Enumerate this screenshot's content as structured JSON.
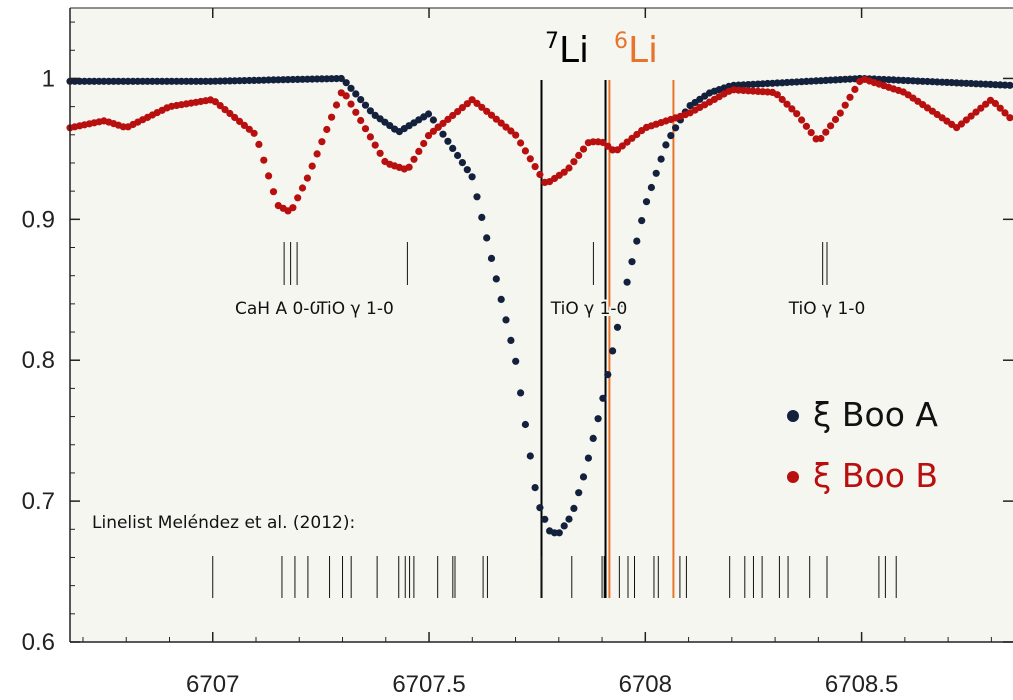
{
  "chart_data": {
    "type": "scatter",
    "xlim": [
      6706.67,
      6708.85
    ],
    "ylim": [
      0.6,
      1.05
    ],
    "x_ticks": [
      {
        "value": 6707,
        "label": "6707"
      },
      {
        "value": 6707.5,
        "label": "6707.5"
      },
      {
        "value": 6708,
        "label": "6708"
      },
      {
        "value": 6708.5,
        "label": "6708.5"
      }
    ],
    "y_ticks": [
      {
        "value": 0.6,
        "label": "0.6"
      },
      {
        "value": 0.7,
        "label": "0.7"
      },
      {
        "value": 0.8,
        "label": "0.8"
      },
      {
        "value": 0.9,
        "label": "0.9"
      },
      {
        "value": 1.0,
        "label": "1"
      }
    ],
    "colors": {
      "background": "#f6f6f1",
      "series_a": "#14213d",
      "series_b": "#b80f0f",
      "li7": "#000000",
      "li6": "#e8742c"
    },
    "series": [
      {
        "name": "ξ Boo A",
        "color": "#14213d",
        "x": [
          6706.67,
          6707.0,
          6707.3,
          6707.37,
          6707.43,
          6707.5,
          6707.6,
          6707.7,
          6707.75,
          6707.78,
          6707.8,
          6707.83,
          6707.86,
          6707.9,
          6707.95,
          6708.0,
          6708.05,
          6708.1,
          6708.15,
          6708.2,
          6708.5,
          6708.85
        ],
        "y": [
          0.998,
          0.998,
          1.0,
          0.975,
          0.962,
          0.975,
          0.93,
          0.8,
          0.7,
          0.678,
          0.677,
          0.69,
          0.72,
          0.77,
          0.845,
          0.91,
          0.955,
          0.98,
          0.99,
          0.995,
          1.0,
          0.995
        ]
      },
      {
        "name": "ξ Boo B",
        "color": "#b80f0f",
        "x": [
          6706.67,
          6706.75,
          6706.8,
          6706.9,
          6707.0,
          6707.1,
          6707.15,
          6707.18,
          6707.22,
          6707.3,
          6707.4,
          6707.45,
          6707.5,
          6707.6,
          6707.7,
          6707.77,
          6707.82,
          6707.87,
          6707.9,
          6707.93,
          6708.0,
          6708.1,
          6708.2,
          6708.3,
          6708.35,
          6708.4,
          6708.45,
          6708.5,
          6708.6,
          6708.72,
          6708.8,
          6708.85
        ],
        "y": [
          0.965,
          0.97,
          0.965,
          0.98,
          0.985,
          0.96,
          0.91,
          0.905,
          0.93,
          0.992,
          0.94,
          0.935,
          0.96,
          0.985,
          0.96,
          0.925,
          0.935,
          0.955,
          0.955,
          0.948,
          0.965,
          0.975,
          0.992,
          0.99,
          0.975,
          0.955,
          0.975,
          1.0,
          0.99,
          0.965,
          0.985,
          0.97
        ]
      }
    ],
    "vertical_lines": [
      {
        "x": 6707.76,
        "color": "#000000"
      },
      {
        "x": 6707.908,
        "color": "#000000"
      },
      {
        "x": 6707.917,
        "color": "#e8742c"
      },
      {
        "x": 6708.065,
        "color": "#e8742c"
      }
    ],
    "linelist_ticks": [
      6707.0,
      6707.16,
      6707.19,
      6707.22,
      6707.27,
      6707.3,
      6707.32,
      6707.38,
      6707.43,
      6707.445,
      6707.455,
      6707.465,
      6707.52,
      6707.555,
      6707.56,
      6707.625,
      6707.635,
      6707.76,
      6707.83,
      6707.9,
      6707.905,
      6707.94,
      6707.96,
      6707.975,
      6708.02,
      6708.03,
      6708.08,
      6708.095,
      6708.195,
      6708.23,
      6708.25,
      6708.27,
      6708.31,
      6708.33,
      6708.38,
      6708.42,
      6708.54,
      6708.555,
      6708.58
    ],
    "molecular_ticks": [
      6707.165,
      6707.18,
      6707.195,
      6707.45,
      6707.88,
      6708.41,
      6708.42
    ],
    "molecular_labels": [
      {
        "text": "CaH A 0-0",
        "x": 6707.15
      },
      {
        "text": "TiO γ 1-0",
        "x": 6707.33
      },
      {
        "text": "TiO γ 1-0",
        "x": 6707.87
      },
      {
        "text": "TiO γ 1-0",
        "x": 6708.42
      }
    ],
    "linelist_label": "Linelist Meléndez et al. (2012):",
    "isotopes": [
      {
        "sup": "7",
        "base": "Li",
        "color": "#000000"
      },
      {
        "sup": "6",
        "base": "Li",
        "color": "#e8742c"
      }
    ],
    "legend": {
      "position": "right",
      "entries": [
        "ξ Boo A",
        "ξ Boo B"
      ]
    }
  }
}
